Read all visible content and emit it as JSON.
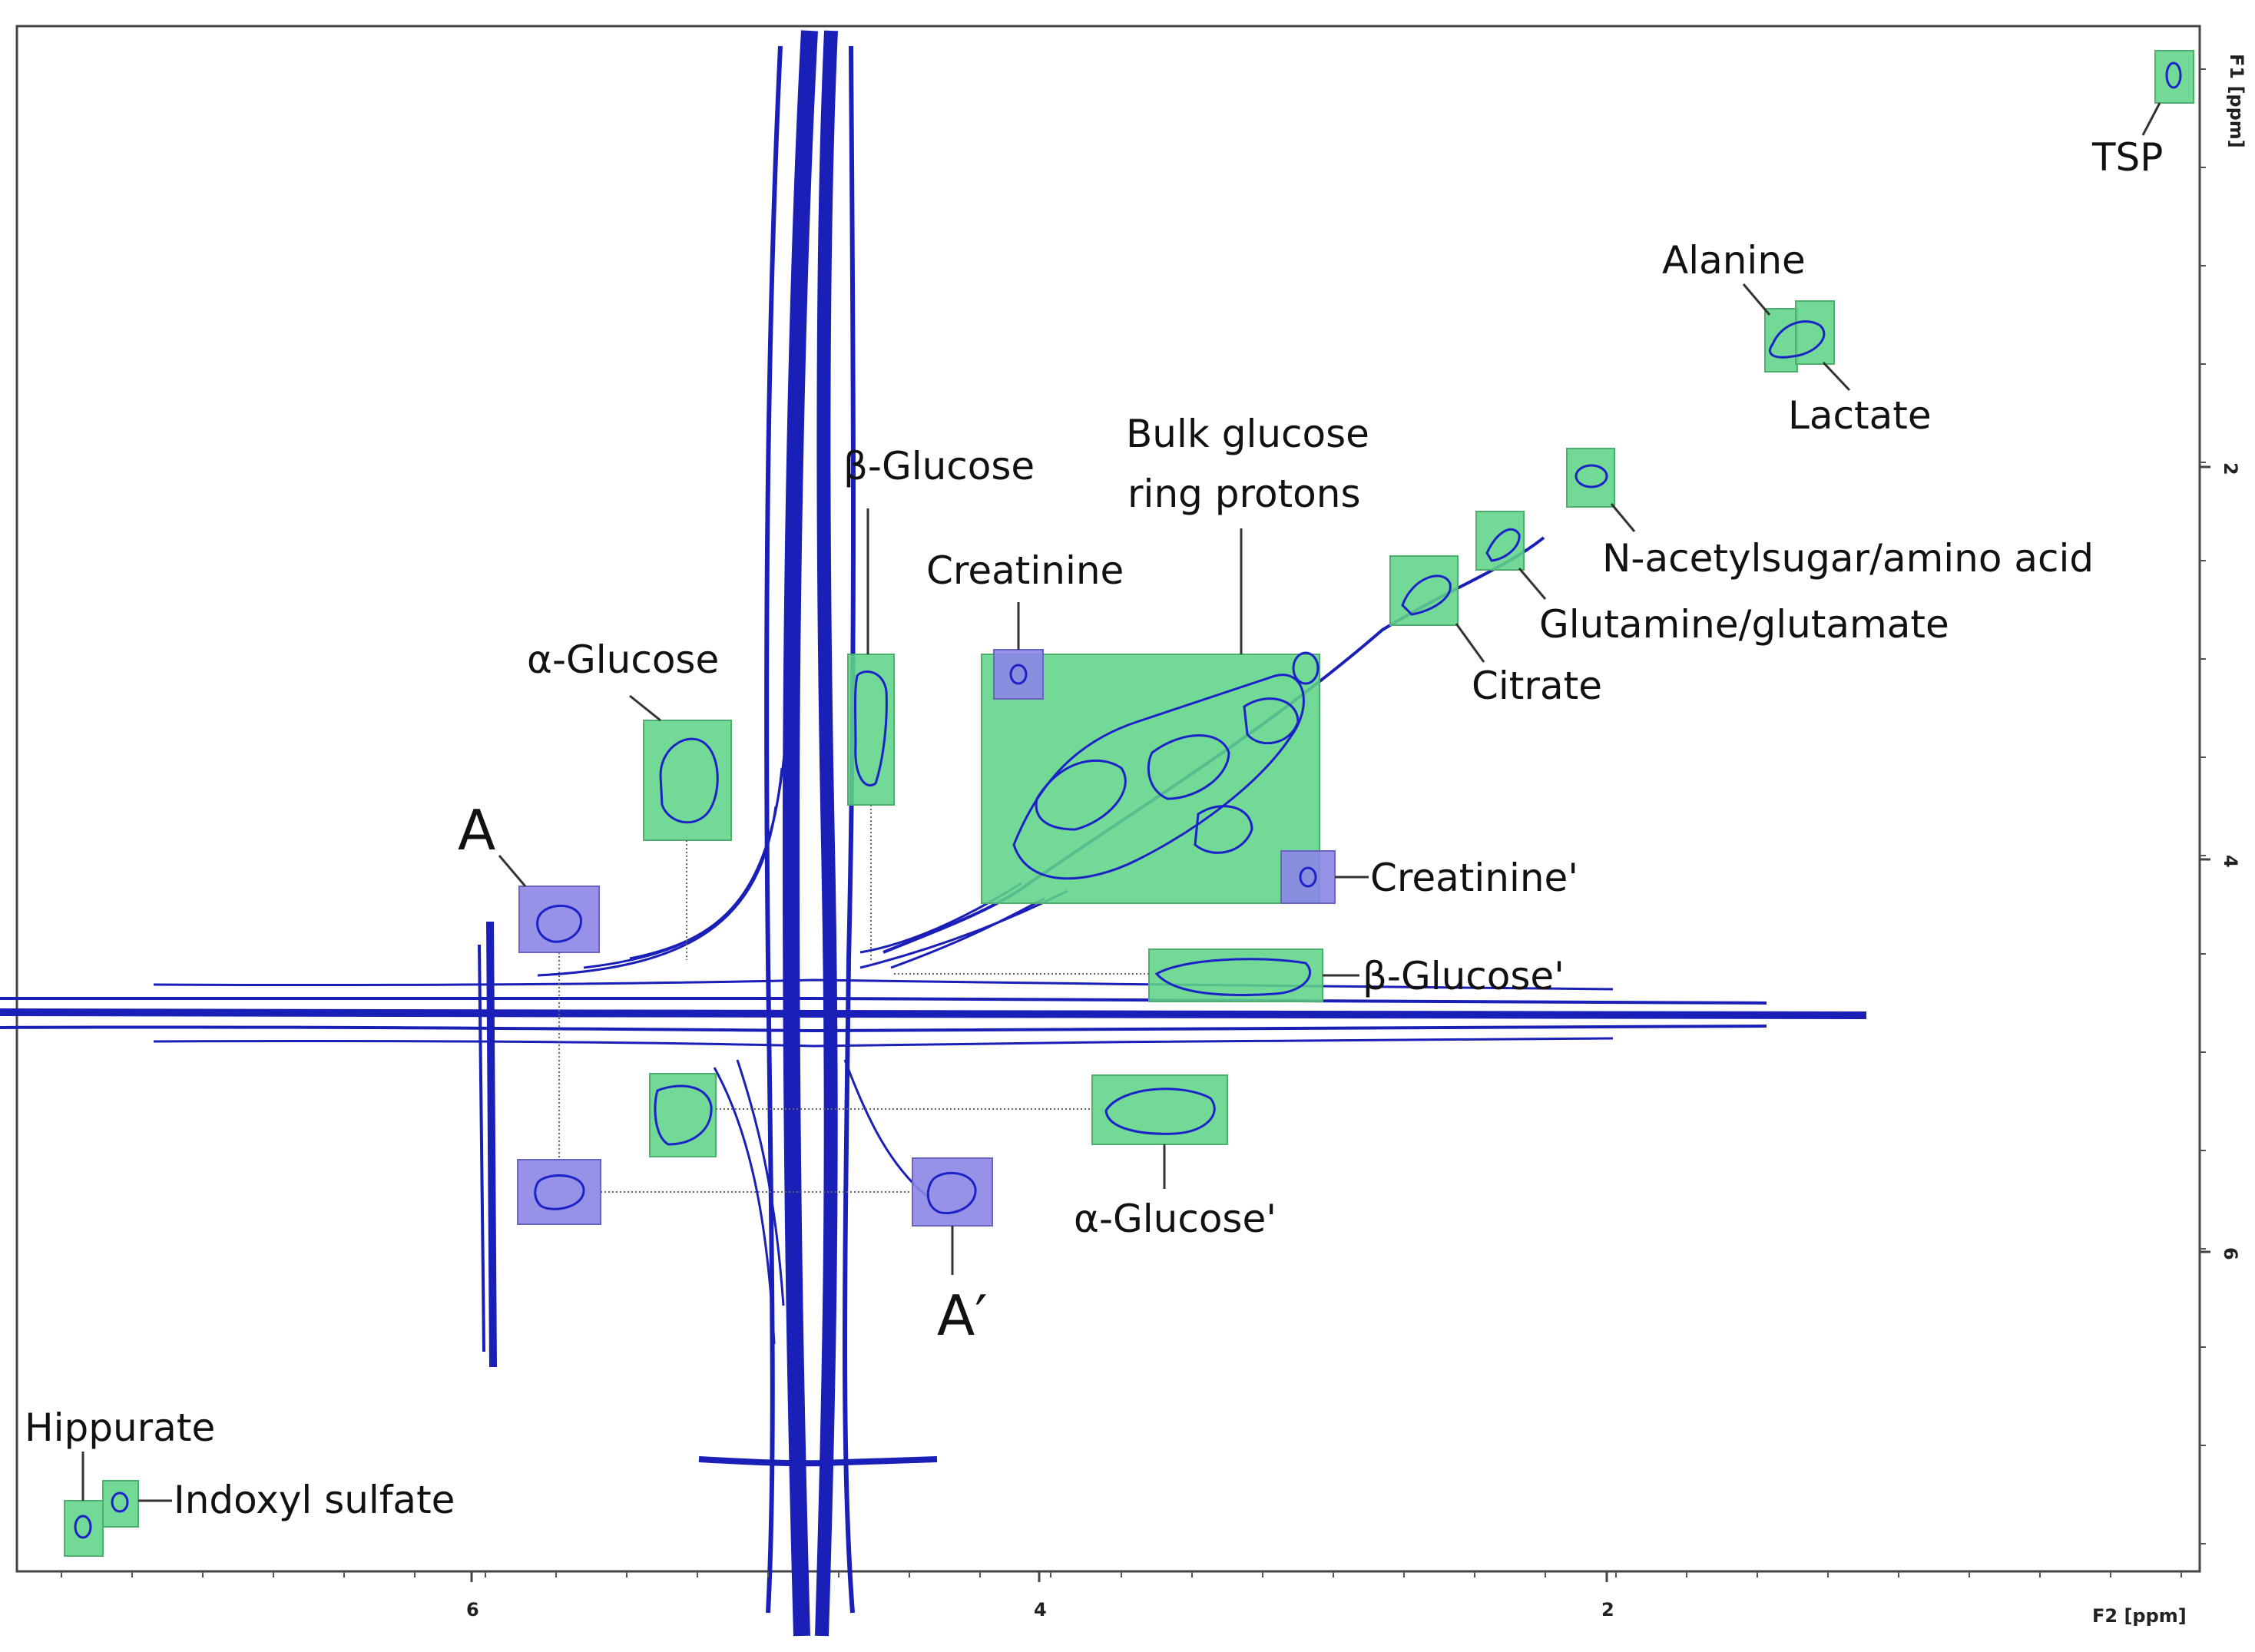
{
  "chart_data": {
    "type": "scatter",
    "title": "",
    "subtitle": "",
    "xlabel": "F2 [ppm]",
    "ylabel": "F1 [ppm]",
    "x_axis": {
      "reversed": true,
      "xlim": [
        7.6,
        -0.05
      ],
      "ticks": [
        "6",
        "4",
        "2"
      ],
      "tick_values": [
        6,
        4,
        2
      ]
    },
    "y_axis": {
      "reversed": true,
      "ylim": [
        -0.4,
        7.5
      ],
      "position": "right",
      "ticks": [
        "2",
        "4",
        "6"
      ],
      "tick_values": [
        2,
        4,
        6
      ]
    },
    "grid": false,
    "legend": "none",
    "colors": {
      "contour": "#1c22c8",
      "metabolite_box": "#5fd488",
      "artifact_box": "#8c86e6"
    },
    "water_peak": {
      "x": 4.8,
      "y": 4.8
    },
    "peaks": [
      {
        "name": "TSP",
        "label": "TSP",
        "x": 0.05,
        "y": 0.0,
        "box": "green"
      },
      {
        "name": "Alanine",
        "label": "Alanine",
        "x": 1.47,
        "y": 1.3,
        "box": "green"
      },
      {
        "name": "Lactate",
        "label": "Lactate",
        "x": 1.33,
        "y": 1.3,
        "box": "green"
      },
      {
        "name": "N-acetylsugar/amino acid",
        "label": "N-acetylsugar/amino acid",
        "x": 2.05,
        "y": 2.05,
        "box": "green"
      },
      {
        "name": "Glutamine/glutamate",
        "label": "Glutamine/glutamate",
        "x": 2.35,
        "y": 2.35,
        "box": "green"
      },
      {
        "name": "Citrate",
        "label": "Citrate",
        "x": 2.65,
        "y": 2.7,
        "box": "green"
      },
      {
        "name": "Bulk glucose ring protons",
        "label_lines": [
          "Bulk glucose",
          "ring protons"
        ],
        "x": 3.55,
        "y": 3.55,
        "box": "green"
      },
      {
        "name": "Creatinine",
        "label": "Creatinine",
        "x": 4.06,
        "y": 3.05,
        "box": "blue"
      },
      {
        "name": "Creatinine'",
        "label": "Creatinine'",
        "x": 3.05,
        "y": 4.06,
        "box": "blue"
      },
      {
        "name": "β-Glucose",
        "label": "β-Glucose",
        "x": 4.64,
        "y": 3.45,
        "box": "green"
      },
      {
        "name": "β-Glucose'",
        "label": "β-Glucose'",
        "x": 3.45,
        "y": 4.64,
        "box": "green"
      },
      {
        "name": "α-Glucose",
        "label": "α-Glucose",
        "x": 5.23,
        "y": 3.55,
        "box": "green"
      },
      {
        "name": "α-Glucose'",
        "label": "α-Glucose'",
        "x": 3.6,
        "y": 5.23,
        "box": "green"
      },
      {
        "name": "α-Glucose (lower)",
        "label": "",
        "x": 5.23,
        "y": 5.35,
        "box": "green"
      },
      {
        "name": "A",
        "label": "A",
        "x": 5.68,
        "y": 4.3,
        "box": "blue"
      },
      {
        "name": "A lower",
        "label": "",
        "x": 5.68,
        "y": 5.8,
        "box": "blue"
      },
      {
        "name": "A'",
        "label": "A′",
        "x": 4.3,
        "y": 5.8,
        "box": "blue"
      },
      {
        "name": "Hippurate",
        "label": "Hippurate",
        "x": 7.55,
        "y": 7.55,
        "box": "green"
      },
      {
        "name": "Indoxyl sulfate",
        "label": "Indoxyl sulfate",
        "x": 7.37,
        "y": 7.45,
        "box": "green"
      }
    ]
  }
}
